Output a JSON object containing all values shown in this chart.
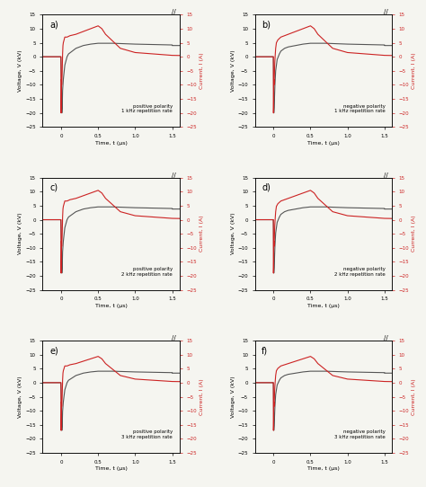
{
  "panels": [
    {
      "label": "a)",
      "polarity": "positive polarity",
      "rate": "1 kHz repetition rate"
    },
    {
      "label": "b)",
      "polarity": "negative polarity",
      "rate": "1 kHz repetition rate"
    },
    {
      "label": "c)",
      "polarity": "positive polarity",
      "rate": "2 kHz repetition rate"
    },
    {
      "label": "d)",
      "polarity": "negative polarity",
      "rate": "2 kHz repetition rate"
    },
    {
      "label": "e)",
      "polarity": "positive polarity",
      "rate": "3 kHz repetition rate"
    },
    {
      "label": "f)",
      "polarity": "negative polarity",
      "rate": "3 kHz repetition rate"
    }
  ],
  "voltage_color": "#555555",
  "current_color": "#cc2222",
  "ylim_voltage": [
    -25,
    15
  ],
  "ylim_current": [
    -25,
    15
  ],
  "yticks_voltage": [
    -25,
    -20,
    -15,
    -10,
    -5,
    0,
    5,
    10,
    15
  ],
  "yticks_current": [
    -25,
    -20,
    -15,
    -10,
    -5,
    0,
    5,
    10,
    15
  ],
  "xlabel": "Time, t (μs)",
  "ylabel_left": "Voltage, V (kV)",
  "ylabel_right": "Current, I (A)",
  "bg_color": "#f5f5f0"
}
